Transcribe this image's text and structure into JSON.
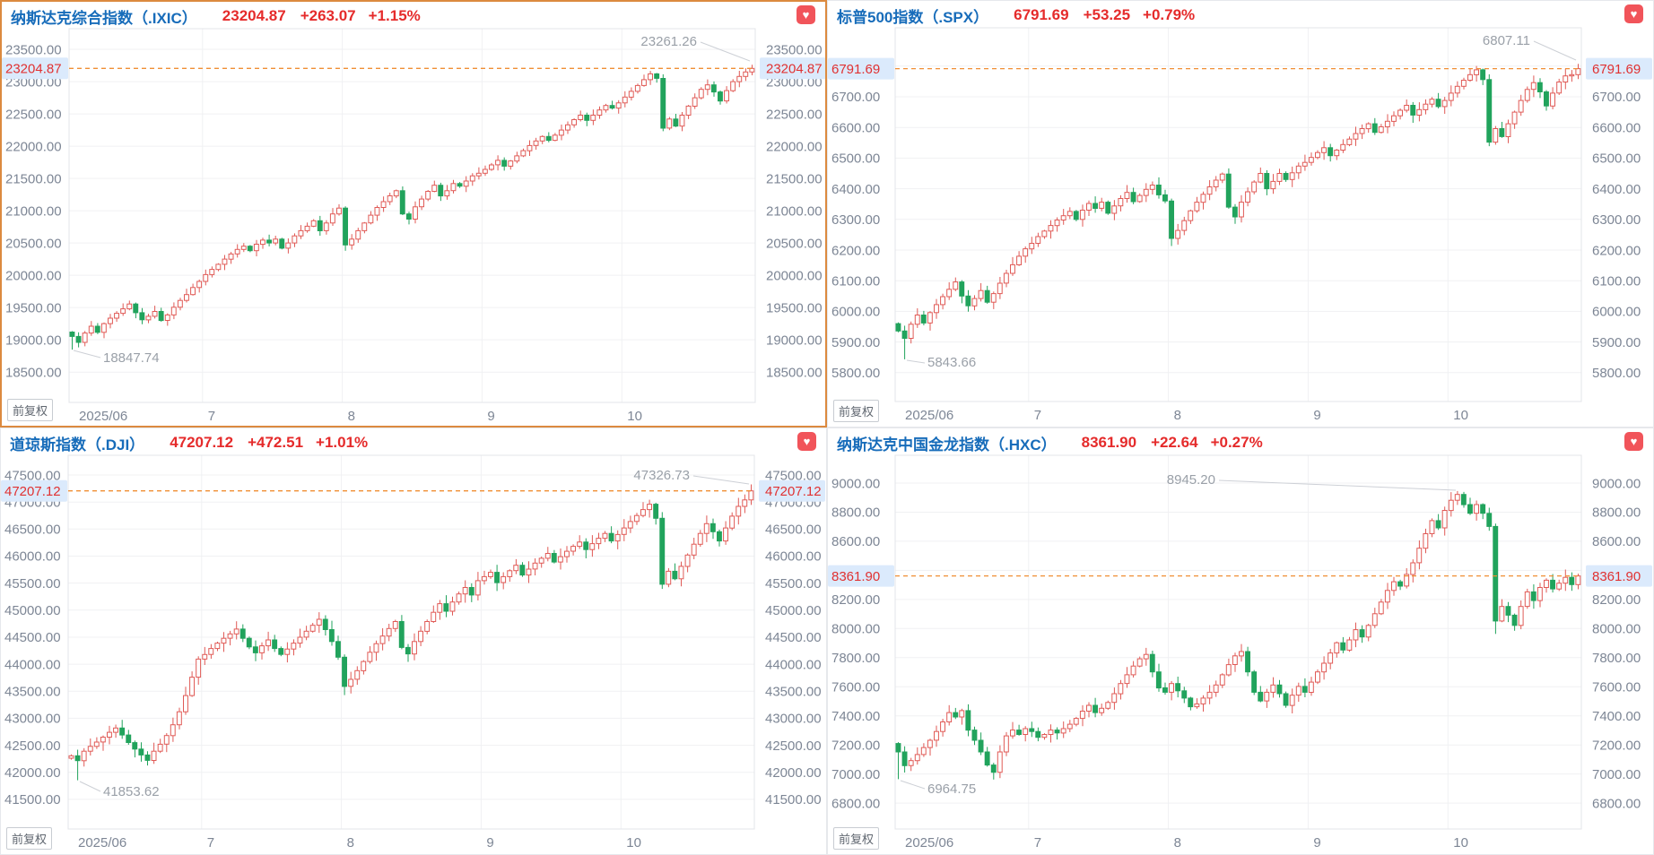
{
  "ui": {
    "adjust_label": "前复权",
    "heart_icon": "heart"
  },
  "colors": {
    "up": "#e05a56",
    "down": "#21a35c",
    "grid": "#f0f1f3",
    "plot_border": "#e3e5e9",
    "dashed_line": "#f08f35",
    "badge_bg": "#dbeafc",
    "badge_text": "#e03131",
    "axis_text": "#7d8695",
    "annotation_text": "#9aa0a8",
    "connector": "#cdd0d6",
    "title_blue": "#176cba",
    "value_red": "#e52b2b",
    "selected_border": "#dc8a3f",
    "heart_bg": "#f1545a"
  },
  "chart_data": [
    {
      "type": "candlestick",
      "title": "纳斯达克综合指数（.IXIC）",
      "price_label": "23204.87",
      "change": "+263.07",
      "change_pct": "+1.15%",
      "last_price": 23204.87,
      "x_labels": [
        "2025/06",
        "7",
        "8",
        "9",
        "10"
      ],
      "month_day_counts": [
        21,
        22,
        22,
        22,
        21
      ],
      "y_ticks": [
        23500,
        23000,
        22500,
        22000,
        21500,
        21000,
        20500,
        20000,
        19500,
        19000,
        18500
      ],
      "y_max": 23820,
      "y_min": 18030,
      "high_annotation": {
        "label": "23261.26",
        "value": 23261.26,
        "day_index": 107
      },
      "low_annotation": {
        "label": "18847.74",
        "value": 18847.74,
        "day_index": 0
      },
      "open_first": 19120,
      "wick_amp": 95,
      "closes": [
        19052,
        18960,
        19105,
        19210,
        19115,
        19250,
        19335,
        19410,
        19480,
        19555,
        19420,
        19310,
        19365,
        19440,
        19300,
        19385,
        19505,
        19610,
        19700,
        19810,
        19905,
        20010,
        20090,
        20170,
        20250,
        20330,
        20400,
        20450,
        20380,
        20480,
        20545,
        20500,
        20560,
        20420,
        20500,
        20610,
        20690,
        20760,
        20845,
        20690,
        20810,
        20950,
        21040,
        20470,
        20560,
        20690,
        20810,
        20930,
        21050,
        21140,
        21230,
        21310,
        20950,
        20870,
        21060,
        21180,
        21300,
        21395,
        21230,
        21310,
        21420,
        21380,
        21460,
        21540,
        21580,
        21640,
        21710,
        21780,
        21690,
        21770,
        21850,
        21930,
        22010,
        22080,
        22150,
        22090,
        22170,
        22250,
        22330,
        22410,
        22480,
        22400,
        22480,
        22560,
        22630,
        22590,
        22670,
        22760,
        22850,
        22940,
        23030,
        23120,
        23050,
        22280,
        22420,
        22310,
        22480,
        22620,
        22750,
        22880,
        22950,
        22840,
        22700,
        22860,
        23000,
        23080,
        23150,
        23204.87
      ]
    },
    {
      "type": "candlestick",
      "title": "标普500指数（.SPX）",
      "price_label": "6791.69",
      "change": "+53.25",
      "change_pct": "+0.79%",
      "last_price": 6791.69,
      "x_labels": [
        "2025/06",
        "7",
        "8",
        "9",
        "10"
      ],
      "month_day_counts": [
        21,
        22,
        22,
        22,
        21
      ],
      "y_ticks": [
        6800,
        6700,
        6600,
        6500,
        6400,
        6300,
        6200,
        6100,
        6000,
        5900,
        5800
      ],
      "y_max": 6925,
      "y_min": 5706,
      "high_annotation": {
        "label": "6807.11",
        "value": 6807.11,
        "day_index": 107
      },
      "low_annotation": {
        "label": "5843.66",
        "value": 5843.66,
        "day_index": 1
      },
      "open_first": 5960,
      "wick_amp": 26,
      "closes": [
        5936,
        5912,
        5958,
        5988,
        5962,
        5996,
        6022,
        6048,
        6072,
        6096,
        6050,
        6018,
        6042,
        6068,
        6030,
        6058,
        6092,
        6124,
        6152,
        6180,
        6204,
        6222,
        6244,
        6262,
        6280,
        6298,
        6312,
        6326,
        6300,
        6330,
        6352,
        6336,
        6356,
        6320,
        6344,
        6368,
        6388,
        6358,
        6378,
        6398,
        6412,
        6380,
        6360,
        6238,
        6264,
        6296,
        6328,
        6356,
        6382,
        6406,
        6428,
        6448,
        6340,
        6308,
        6356,
        6390,
        6422,
        6450,
        6400,
        6424,
        6450,
        6430,
        6452,
        6474,
        6486,
        6502,
        6518,
        6534,
        6508,
        6526,
        6544,
        6562,
        6580,
        6596,
        6612,
        6584,
        6602,
        6620,
        6638,
        6656,
        6672,
        6640,
        6658,
        6676,
        6692,
        6668,
        6688,
        6712,
        6734,
        6754,
        6772,
        6788,
        6756,
        6552,
        6596,
        6570,
        6612,
        6650,
        6688,
        6724,
        6746,
        6716,
        6670,
        6712,
        6748,
        6768,
        6772,
        6791.69
      ]
    },
    {
      "type": "candlestick",
      "title": "道琼斯指数（.DJI）",
      "price_label": "47207.12",
      "change": "+472.51",
      "change_pct": "+1.01%",
      "last_price": 47207.12,
      "x_labels": [
        "2025/06",
        "7",
        "8",
        "9",
        "10"
      ],
      "month_day_counts": [
        21,
        22,
        22,
        22,
        21
      ],
      "y_ticks": [
        47500,
        47000,
        46500,
        46000,
        45500,
        45000,
        44500,
        44000,
        43500,
        43000,
        42500,
        42000,
        41500
      ],
      "y_max": 47865,
      "y_min": 40951,
      "high_annotation": {
        "label": "47326.73",
        "value": 47326.73,
        "day_index": 107
      },
      "low_annotation": {
        "label": "41853.62",
        "value": 41853.62,
        "day_index": 1
      },
      "open_first": 42260,
      "wick_amp": 170,
      "closes": [
        42305,
        42215,
        42390,
        42480,
        42560,
        42650,
        42740,
        42820,
        42690,
        42550,
        42430,
        42320,
        42220,
        42390,
        42520,
        42680,
        42880,
        43120,
        43420,
        43760,
        44095,
        44180,
        44290,
        44390,
        44480,
        44560,
        44650,
        44480,
        44320,
        44210,
        44340,
        44450,
        44290,
        44180,
        44280,
        44390,
        44500,
        44610,
        44720,
        44830,
        44640,
        44420,
        44130,
        43590,
        43720,
        43880,
        44050,
        44220,
        44380,
        44520,
        44660,
        44790,
        44310,
        44190,
        44420,
        44610,
        44790,
        44960,
        45120,
        44980,
        45150,
        45300,
        45420,
        45280,
        45545,
        45620,
        45700,
        45510,
        45620,
        45730,
        45830,
        45650,
        45760,
        45870,
        45960,
        46050,
        45890,
        45990,
        46090,
        46180,
        46260,
        46120,
        46230,
        46330,
        46420,
        46280,
        46400,
        46520,
        46640,
        46750,
        46860,
        46960,
        46700,
        45480,
        45720,
        45580,
        45810,
        46020,
        46220,
        46420,
        46600,
        46450,
        46280,
        46520,
        46740,
        46920,
        47040,
        47207.12
      ]
    },
    {
      "type": "candlestick",
      "title": "纳斯达克中国金龙指数（.HXC）",
      "price_label": "8361.90",
      "change": "+22.64",
      "change_pct": "+0.27%",
      "last_price": 8361.9,
      "x_labels": [
        "2025/06",
        "7",
        "8",
        "9",
        "10"
      ],
      "month_day_counts": [
        21,
        22,
        22,
        22,
        21
      ],
      "y_ticks": [
        9000,
        8800,
        8600,
        8400,
        8200,
        8000,
        7800,
        7600,
        7400,
        7200,
        7000,
        6800
      ],
      "y_max": 9191,
      "y_min": 6622,
      "high_annotation": {
        "label": "8945.20",
        "value": 8945.2,
        "day_index": 88
      },
      "low_annotation": {
        "label": "6964.75",
        "value": 6964.75,
        "day_index": 0
      },
      "extra_low": {
        "day_index": 94,
        "value": 7963
      },
      "open_first": 7210,
      "wick_amp": 58,
      "closes": [
        7152,
        7058,
        7092,
        7134,
        7182,
        7232,
        7292,
        7358,
        7422,
        7392,
        7436,
        7302,
        7232,
        7152,
        7062,
        7012,
        7152,
        7262,
        7302,
        7272,
        7312,
        7292,
        7252,
        7272,
        7302,
        7282,
        7312,
        7342,
        7382,
        7432,
        7472,
        7422,
        7452,
        7492,
        7552,
        7622,
        7682,
        7742,
        7792,
        7822,
        7702,
        7592,
        7562,
        7622,
        7572,
        7522,
        7462,
        7482,
        7522,
        7562,
        7612,
        7682,
        7752,
        7812,
        7842,
        7702,
        7562,
        7502,
        7562,
        7612,
        7552,
        7472,
        7542,
        7602,
        7562,
        7632,
        7702,
        7762,
        7832,
        7902,
        7852,
        7922,
        7992,
        7942,
        8022,
        8102,
        8182,
        8262,
        8322,
        8292,
        8372,
        8452,
        8552,
        8652,
        8742,
        8692,
        8812,
        8882,
        8922,
        8852,
        8792,
        8852,
        8792,
        8702,
        8052,
        8152,
        8092,
        8022,
        8152,
        8252,
        8192,
        8282,
        8332,
        8272,
        8312,
        8352,
        8302,
        8361.9
      ]
    }
  ]
}
